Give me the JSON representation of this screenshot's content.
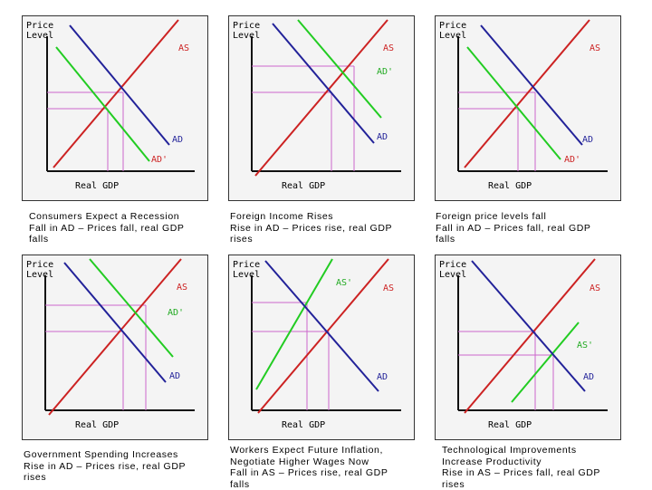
{
  "panels": [
    {
      "ylabel": [
        "Price",
        "Level"
      ],
      "xlabel": "Real GDP",
      "caption": [
        "Consumers Expect a Recession",
        "Fall in AD – Prices fall, real GDP",
        "falls"
      ],
      "curves": [
        {
          "label": "AS",
          "color": "#cc2222"
        },
        {
          "label": "AD",
          "color": "#222299"
        },
        {
          "label": "AD'",
          "color": "#22cc22"
        }
      ]
    },
    {
      "ylabel": [
        "Price",
        "Level"
      ],
      "xlabel": "Real GDP",
      "caption": [
        "Foreign Income Rises",
        "Rise in AD – Prices rise, real GDP",
        "rises"
      ],
      "curves": [
        {
          "label": "AS",
          "color": "#cc2222"
        },
        {
          "label": "AD'",
          "color": "#22cc22"
        },
        {
          "label": "AD",
          "color": "#222299"
        }
      ]
    },
    {
      "ylabel": [
        "Price",
        "Level"
      ],
      "xlabel": "Real GDP",
      "caption": [
        "Foreign price levels fall",
        "Fall in AD – Prices fall, real GDP",
        "falls"
      ],
      "curves": [
        {
          "label": "AS",
          "color": "#cc2222"
        },
        {
          "label": "AD",
          "color": "#222299"
        },
        {
          "label": "AD'",
          "color": "#22cc22"
        }
      ]
    },
    {
      "ylabel": [
        "Price",
        "Level"
      ],
      "xlabel": "Real GDP",
      "caption": [
        "Government Spending Increases",
        "Rise in AD – Prices rise, real GDP",
        "rises"
      ],
      "curves": [
        {
          "label": "AS",
          "color": "#cc2222"
        },
        {
          "label": "AD'",
          "color": "#22cc22"
        },
        {
          "label": "AD",
          "color": "#222299"
        }
      ]
    },
    {
      "ylabel": [
        "Price",
        "Level"
      ],
      "xlabel": "Real GDP",
      "caption": [
        "Workers Expect Future Inflation,",
        "Negotiate Higher Wages Now",
        "Fall in AS – Prices rise, real GDP",
        "falls"
      ],
      "curves": [
        {
          "label": "AS'",
          "color": "#22cc22"
        },
        {
          "label": "AS",
          "color": "#cc2222"
        },
        {
          "label": "AD",
          "color": "#222299"
        }
      ]
    },
    {
      "ylabel": [
        "Price",
        "Level"
      ],
      "xlabel": "Real GDP",
      "caption": [
        "Technological Improvements",
        "Increase Productivity",
        "Rise in AS – Prices fall, real GDP",
        "rises"
      ],
      "curves": [
        {
          "label": "AS",
          "color": "#cc2222"
        },
        {
          "label": "AS'",
          "color": "#22cc22"
        },
        {
          "label": "AD",
          "color": "#222299"
        }
      ]
    }
  ],
  "guide_color": "#cc66cc",
  "axis_color": "#111111"
}
